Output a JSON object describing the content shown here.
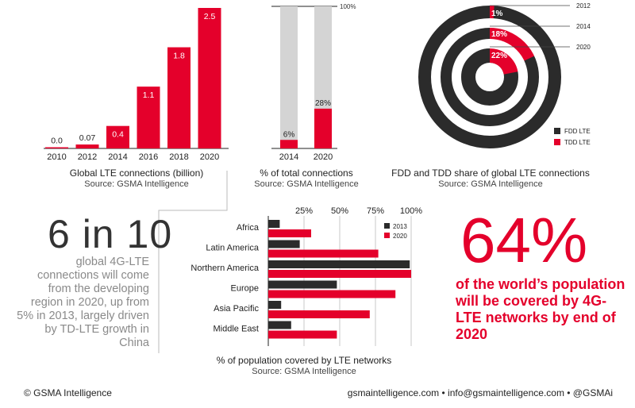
{
  "colors": {
    "red": "#e4002b",
    "dark": "#2b2b2b",
    "grey": "#d4d4d4",
    "text": "#222222",
    "muted": "#8a8a8a"
  },
  "chart_data": [
    {
      "type": "bar",
      "title": "Global LTE connections (billion)",
      "source": "Source: GSMA Intelligence",
      "categories": [
        "2010",
        "2012",
        "2014",
        "2016",
        "2018",
        "2020"
      ],
      "values": [
        0.0,
        0.07,
        0.4,
        1.1,
        1.8,
        2.5
      ],
      "value_labels": [
        "0.0",
        "0.07",
        "0.4",
        "1.1",
        "1.8",
        "2.5"
      ],
      "ylim": [
        0,
        2.5
      ]
    },
    {
      "type": "bar",
      "title": "% of total connections",
      "source": "Source: GSMA Intelligence",
      "categories": [
        "2014",
        "2020"
      ],
      "values": [
        6,
        28
      ],
      "value_labels": [
        "6%",
        "28%"
      ],
      "max_label": "100%",
      "ylim": [
        0,
        100
      ]
    },
    {
      "type": "pie",
      "title": "FDD and TDD share of global LTE connections",
      "source": "Source: GSMA Intelligence",
      "rings": [
        {
          "year": "2012",
          "tdd": 1,
          "label": "1%"
        },
        {
          "year": "2014",
          "tdd": 18,
          "label": "18%"
        },
        {
          "year": "2020",
          "tdd": 22,
          "label": "22%"
        }
      ],
      "legend": [
        {
          "name": "FDD LTE"
        },
        {
          "name": "TDD LTE"
        }
      ]
    },
    {
      "type": "bar",
      "orientation": "horizontal",
      "title": "% of population covered by LTE networks",
      "source": "Source: GSMA Intelligence",
      "categories": [
        "Africa",
        "Latin America",
        "Northern America",
        "Europe",
        "Asia Pacific",
        "Middle East"
      ],
      "series": [
        {
          "name": "2013",
          "values": [
            8,
            22,
            99,
            48,
            9,
            16
          ]
        },
        {
          "name": "2020",
          "values": [
            30,
            77,
            100,
            89,
            71,
            48
          ]
        }
      ],
      "ticks": [
        "25%",
        "50%",
        "75%",
        "100%"
      ],
      "xlim": [
        0,
        100
      ]
    }
  ],
  "callout_left": {
    "headline": "6 in 10",
    "text": "global 4G-LTE connections will come from the developing region in 2020, up from 5% in 2013, largely driven by TD-LTE growth in China"
  },
  "callout_right": {
    "headline": "64%",
    "text": "of the world’s population will be covered by 4G-LTE networks by end of 2020"
  },
  "footer": {
    "left": "© GSMA Intelligence",
    "right": "gsmaintelligence.com  •  info@gsmaintelligence.com  •  @GSMAi"
  }
}
